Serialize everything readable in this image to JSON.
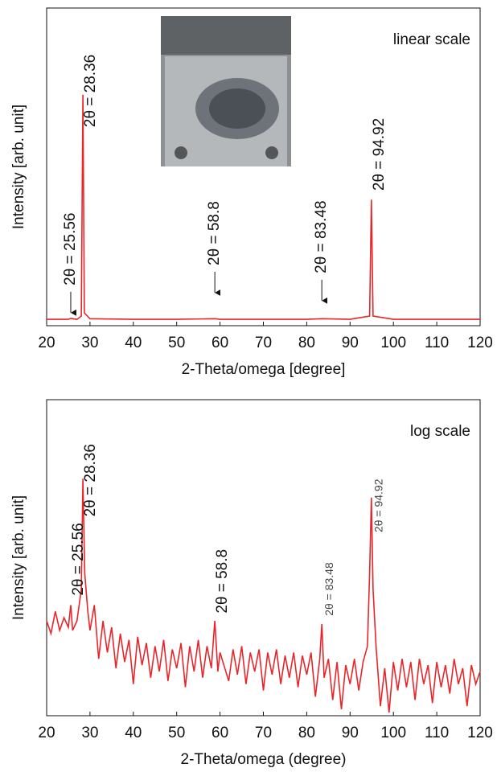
{
  "chart_data": [
    {
      "type": "line",
      "note_text": "linear scale",
      "x_label": "2-Theta/omega [degree]",
      "y_label": "Intensity [arb. unit]",
      "color": "#e8262a",
      "xlim": [
        20,
        120
      ],
      "ylim": [
        0,
        100
      ],
      "xticks": [
        20,
        30,
        40,
        50,
        60,
        70,
        80,
        90,
        100,
        110,
        120
      ],
      "x": [
        20,
        25,
        25.56,
        27,
        28,
        28.36,
        28.7,
        30,
        40,
        50,
        58.8,
        60,
        70,
        80,
        83.48,
        90,
        94.5,
        94.92,
        95.3,
        100,
        110,
        120
      ],
      "values": [
        2,
        2,
        2.3,
        2,
        3,
        72.7,
        4,
        2.2,
        2,
        2,
        2.2,
        2,
        2,
        2,
        2.2,
        2,
        3,
        39.7,
        3,
        2,
        2,
        2
      ],
      "annotations": [
        {
          "text": "2θ = 25.56",
          "x": 25.56,
          "y": 12.7,
          "arrow": true
        },
        {
          "text": "2θ = 28.36",
          "x": 28.36,
          "y": 62.5,
          "arrow": false
        },
        {
          "text": "2θ = 58.8",
          "x": 58.8,
          "y": 19,
          "arrow": true
        },
        {
          "text": "2θ = 83.48",
          "x": 83.48,
          "y": 16.5,
          "arrow": true
        },
        {
          "text": "2θ = 94.92",
          "x": 94.92,
          "y": 42.5,
          "arrow": false
        }
      ]
    },
    {
      "type": "line",
      "note_text": "log scale",
      "x_label": "2-Theta/omega (degree)",
      "y_label": "Intensity [arb. unit]",
      "color": "#e8262a",
      "xlim": [
        20,
        120
      ],
      "ylim": [
        0,
        100
      ],
      "xticks": [
        20,
        30,
        40,
        50,
        60,
        70,
        80,
        90,
        100,
        110,
        120
      ],
      "x": [
        20,
        21,
        22,
        23,
        24,
        25,
        25.56,
        26,
        27,
        28,
        28.36,
        28.8,
        29.5,
        30,
        31,
        32,
        33,
        34,
        35,
        36,
        37,
        38,
        39,
        40,
        41,
        42,
        43,
        44,
        45,
        46,
        47,
        48,
        49,
        50,
        51,
        52,
        53,
        54,
        55,
        56,
        57,
        58,
        58.8,
        59.5,
        60,
        62,
        63,
        64,
        65,
        66,
        67,
        68,
        69,
        70,
        71,
        72,
        73,
        74,
        75,
        76,
        77,
        78,
        79,
        80,
        81,
        82,
        83,
        83.48,
        84,
        85,
        86,
        87,
        88,
        89,
        90,
        91,
        92,
        93,
        94,
        94.5,
        94.92,
        95.3,
        96,
        97,
        98,
        99,
        100,
        101,
        102,
        103,
        104,
        105,
        106,
        107,
        108,
        109,
        110,
        111,
        112,
        113,
        114,
        115,
        116,
        117,
        118,
        119,
        120
      ],
      "values": [
        30,
        26,
        33,
        27,
        31,
        28,
        35,
        27,
        30,
        40,
        75,
        45,
        33,
        27,
        35,
        18,
        30,
        20,
        28,
        15,
        26,
        17,
        24,
        10,
        25,
        16,
        23,
        12,
        22,
        14,
        24,
        11,
        21,
        15,
        23,
        9,
        22,
        14,
        24,
        12,
        22,
        15,
        30,
        14,
        20,
        11,
        21,
        13,
        22,
        10,
        20,
        14,
        21,
        8,
        20,
        13,
        21,
        10,
        19,
        12,
        20,
        9,
        19,
        13,
        20,
        6,
        18,
        29,
        12,
        18,
        5,
        17,
        2,
        16,
        10,
        18,
        8,
        17,
        22,
        45,
        69,
        40,
        22,
        3,
        15,
        1,
        17,
        8,
        18,
        9,
        17,
        5,
        18,
        10,
        16,
        4,
        17,
        9,
        16,
        7,
        18,
        10,
        15,
        3,
        16,
        10,
        14
      ],
      "annotations": [
        {
          "text": "2θ = 25.56",
          "x": 25.56,
          "y": 38,
          "small": false
        },
        {
          "text": "2θ = 28.36",
          "x": 28.36,
          "y": 63,
          "small": false
        },
        {
          "text": "2θ = 58.8",
          "x": 58.8,
          "y": 32.4,
          "small": false
        },
        {
          "text": "2θ = 83.48",
          "x": 83.48,
          "y": 31.6,
          "small": true
        },
        {
          "text": "2θ = 94.92",
          "x": 94.92,
          "y": 58,
          "small": true
        }
      ]
    }
  ]
}
